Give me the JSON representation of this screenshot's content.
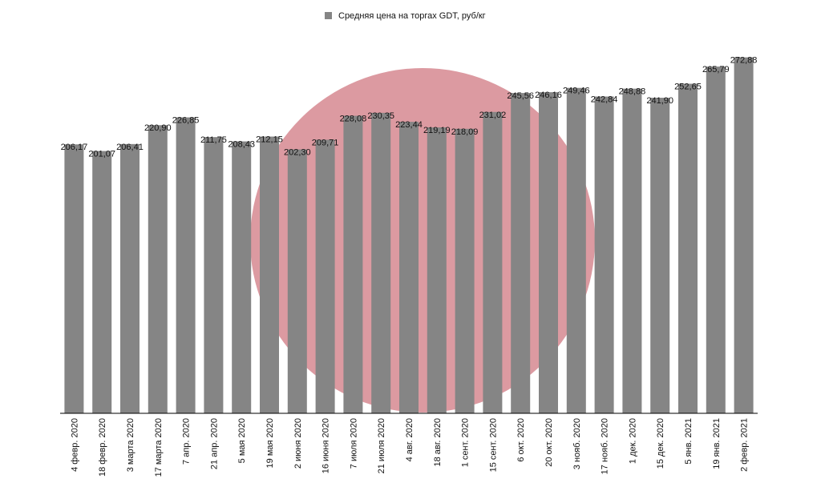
{
  "chart_data": {
    "type": "bar",
    "categories": [
      "4 февр. 2020",
      "18 февр. 2020",
      "3 марта 2020",
      "17 марта 2020",
      "7 апр. 2020",
      "21 апр. 2020",
      "5 мая 2020",
      "19 мая 2020",
      "2 июня 2020",
      "16 июня 2020",
      "7 июля 2020",
      "21 июля 2020",
      "4 авг. 2020",
      "18 авг. 2020",
      "1 сент. 2020",
      "15 сент. 2020",
      "6 окт. 2020",
      "20 окт. 2020",
      "3 нояб. 2020",
      "17 нояб. 2020",
      "1 дек. 2020",
      "15 дек. 2020",
      "5 янв. 2021",
      "19 янв. 2021",
      "2 февр. 2021"
    ],
    "series": [
      {
        "name": "Средняя цена на торгах GDT, руб/кг",
        "color": "#858585",
        "values": [
          206.17,
          201.07,
          206.41,
          220.9,
          226.85,
          211.75,
          208.43,
          212.15,
          202.3,
          209.71,
          228.08,
          230.35,
          223.44,
          219.19,
          218.09,
          231.02,
          245.56,
          246.16,
          249.46,
          242.84,
          248.88,
          241.9,
          252.65,
          265.79,
          272.88
        ],
        "value_labels": [
          "206,17",
          "201,07",
          "206,41",
          "220,90",
          "226,85",
          "211,75",
          "208,43",
          "212,15",
          "202,30",
          "209,71",
          "228,08",
          "230,35",
          "223,44",
          "219,19",
          "218,09",
          "231,02",
          "245,56",
          "246,16",
          "249,46",
          "242,84",
          "248,88",
          "241,90",
          "252,65",
          "265,79",
          "272,88"
        ]
      }
    ],
    "ylim": [
      0,
      280
    ]
  }
}
